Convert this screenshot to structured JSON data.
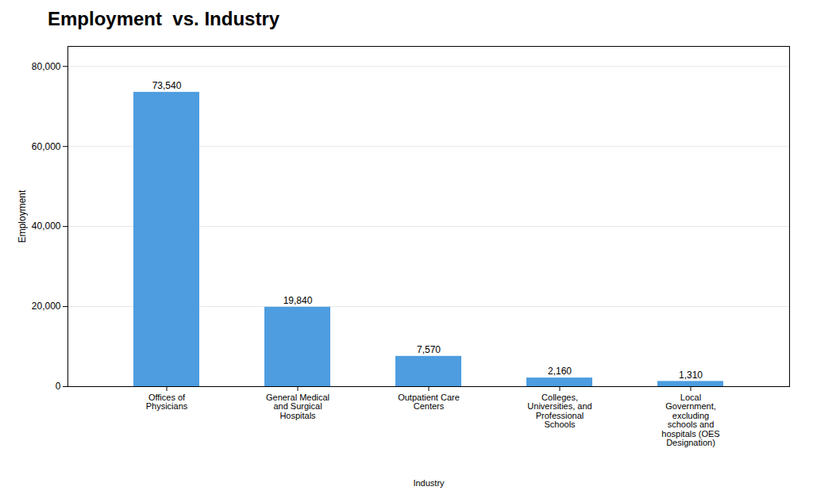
{
  "chart_data": {
    "type": "bar",
    "title": "Employment  vs. Industry",
    "xlabel": "Industry",
    "ylabel": "Employment",
    "categories": [
      "Offices of\nPhysicians",
      "General Medical\nand Surgical\nHospitals",
      "Outpatient Care\nCenters",
      "Colleges,\nUniversities, and\nProfessional\nSchools",
      "Local\nGovernment,\nexcluding\nschools and\nhospitals (OES\nDesignation)"
    ],
    "values": [
      73540,
      19840,
      7570,
      2160,
      1310
    ],
    "value_labels": [
      "73,540",
      "19,840",
      "7,570",
      "2,160",
      "1,310"
    ],
    "data_labels": true,
    "color": "#4d9de0",
    "ylim": [
      0,
      85000
    ],
    "yticks": [
      0,
      {
        "value": 20000,
        "label": "20,000"
      },
      {
        "value": 40000,
        "label": "40,000"
      },
      {
        "value": 60000,
        "label": "60,000"
      },
      {
        "value": 80000,
        "label": "80,000"
      }
    ],
    "grid": true
  }
}
